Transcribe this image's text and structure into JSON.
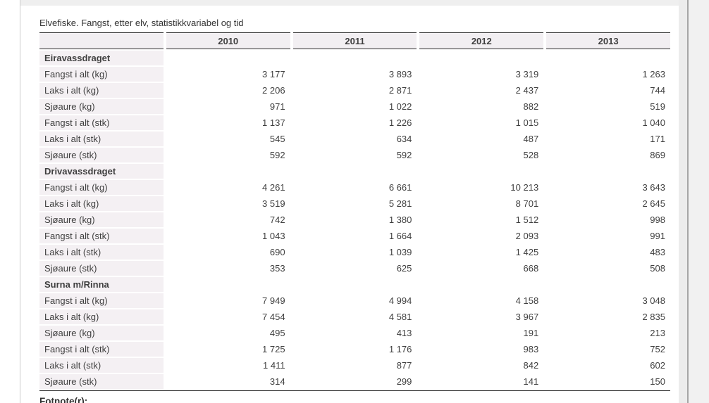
{
  "page": {
    "title": "Elvefiske. Fangst, etter elv, statistikkvariabel og tid",
    "footnote_label": "Fotnote(r):"
  },
  "colors": {
    "row_label_bg": "#f4f0f3",
    "header_bg": "#f2eff2",
    "table_border": "#2e2e2e",
    "text": "#3f3f3f"
  },
  "table": {
    "column_headers": [
      "2010",
      "2011",
      "2012",
      "2013"
    ],
    "rows": [
      {
        "type": "group",
        "label": "Eiravassdraget"
      },
      {
        "type": "data",
        "label": "Fangst i alt (kg)",
        "values": [
          "3 177",
          "3 893",
          "3 319",
          "1 263"
        ]
      },
      {
        "type": "data",
        "label": "Laks i alt (kg)",
        "values": [
          "2 206",
          "2 871",
          "2 437",
          "744"
        ]
      },
      {
        "type": "data",
        "label": "Sjøaure (kg)",
        "values": [
          "971",
          "1 022",
          "882",
          "519"
        ]
      },
      {
        "type": "data",
        "label": "Fangst i alt (stk)",
        "values": [
          "1 137",
          "1 226",
          "1 015",
          "1 040"
        ]
      },
      {
        "type": "data",
        "label": "Laks i alt (stk)",
        "values": [
          "545",
          "634",
          "487",
          "171"
        ]
      },
      {
        "type": "data",
        "label": "Sjøaure (stk)",
        "values": [
          "592",
          "592",
          "528",
          "869"
        ]
      },
      {
        "type": "group",
        "label": "Drivavassdraget"
      },
      {
        "type": "data",
        "label": "Fangst i alt (kg)",
        "values": [
          "4 261",
          "6 661",
          "10 213",
          "3 643"
        ]
      },
      {
        "type": "data",
        "label": "Laks i alt (kg)",
        "values": [
          "3 519",
          "5 281",
          "8 701",
          "2 645"
        ]
      },
      {
        "type": "data",
        "label": "Sjøaure (kg)",
        "values": [
          "742",
          "1 380",
          "1 512",
          "998"
        ]
      },
      {
        "type": "data",
        "label": "Fangst i alt (stk)",
        "values": [
          "1 043",
          "1 664",
          "2 093",
          "991"
        ]
      },
      {
        "type": "data",
        "label": "Laks i alt (stk)",
        "values": [
          "690",
          "1 039",
          "1 425",
          "483"
        ]
      },
      {
        "type": "data",
        "label": "Sjøaure (stk)",
        "values": [
          "353",
          "625",
          "668",
          "508"
        ]
      },
      {
        "type": "group",
        "label": "Surna m/Rinna"
      },
      {
        "type": "data",
        "label": "Fangst i alt (kg)",
        "values": [
          "7 949",
          "4 994",
          "4 158",
          "3 048"
        ]
      },
      {
        "type": "data",
        "label": "Laks i alt (kg)",
        "values": [
          "7 454",
          "4 581",
          "3 967",
          "2 835"
        ]
      },
      {
        "type": "data",
        "label": "Sjøaure (kg)",
        "values": [
          "495",
          "413",
          "191",
          "213"
        ]
      },
      {
        "type": "data",
        "label": "Fangst i alt (stk)",
        "values": [
          "1 725",
          "1 176",
          "983",
          "752"
        ]
      },
      {
        "type": "data",
        "label": "Laks i alt (stk)",
        "values": [
          "1 411",
          "877",
          "842",
          "602"
        ]
      },
      {
        "type": "data",
        "label": "Sjøaure (stk)",
        "values": [
          "314",
          "299",
          "141",
          "150"
        ]
      }
    ]
  }
}
